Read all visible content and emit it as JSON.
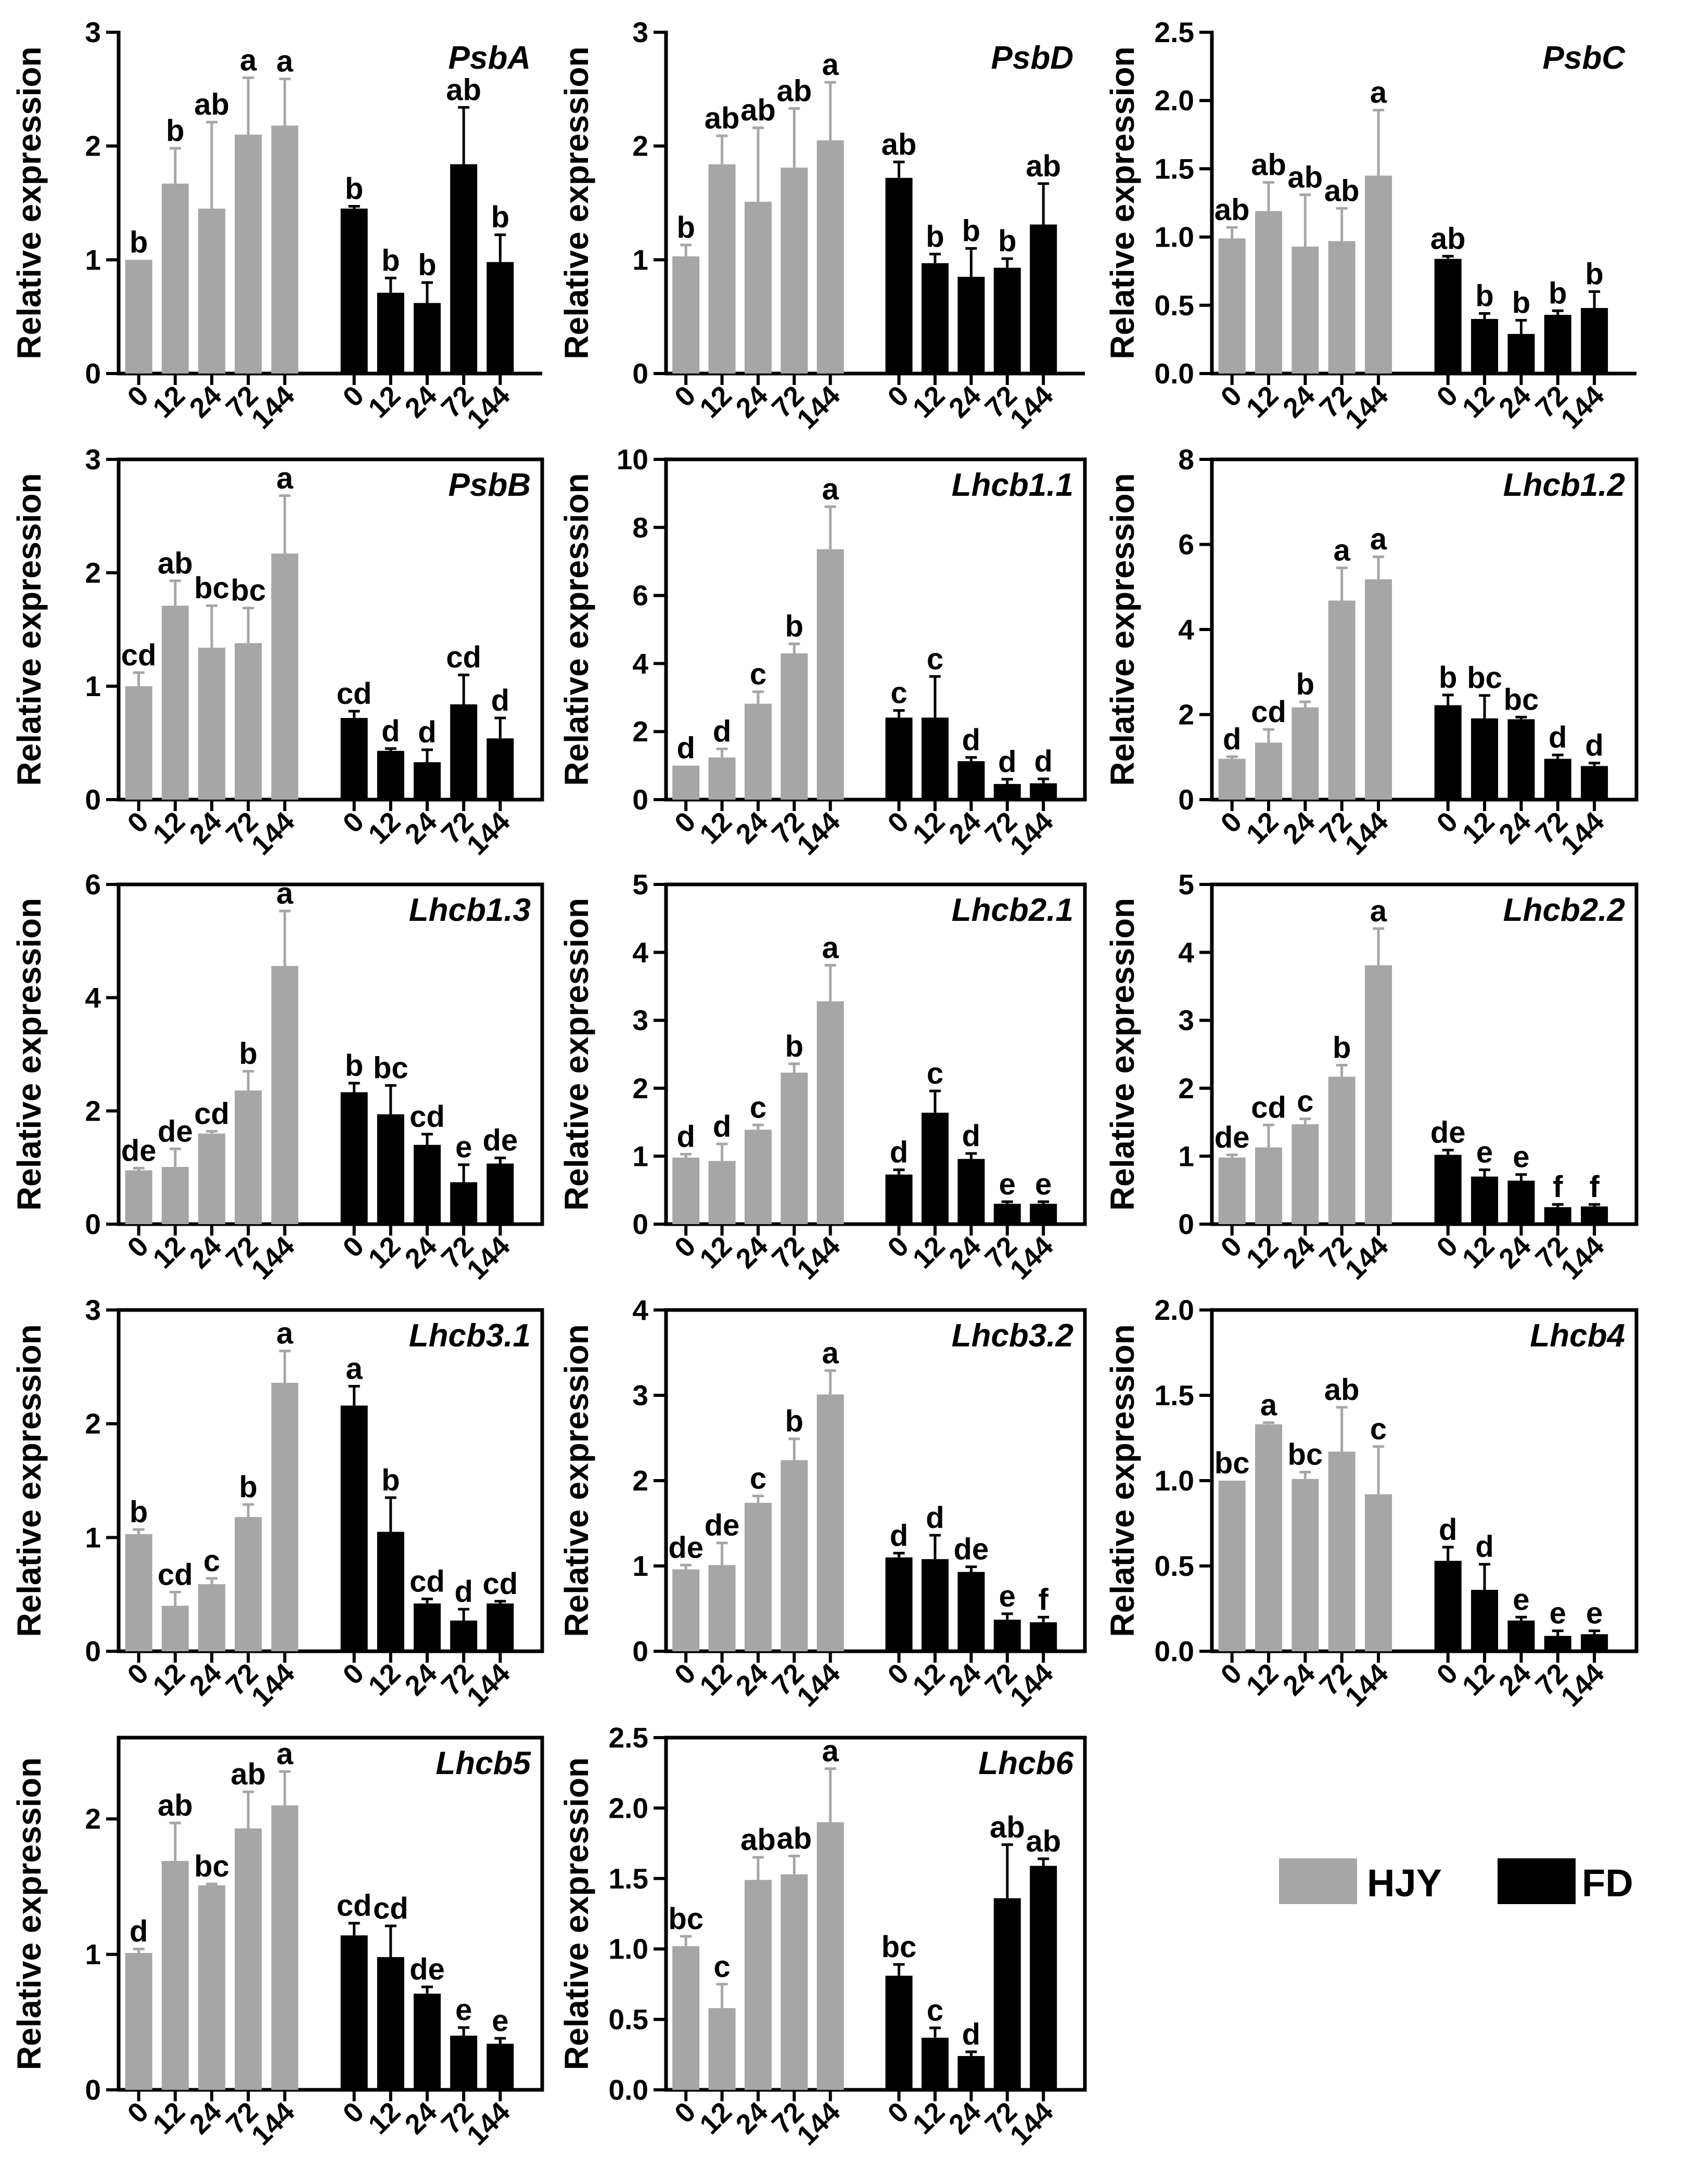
{
  "colors": {
    "hjy": "#A6A6A6",
    "fd": "#000000",
    "axis": "#000000"
  },
  "legend": {
    "position": "bottom-right",
    "items": [
      {
        "label": "HJY",
        "color": "#A6A6A6"
      },
      {
        "label": "FD",
        "color": "#000000"
      }
    ]
  },
  "chart_data": [
    {
      "type": "bar",
      "title": "PsbA",
      "ylabel": "Relative expression",
      "ylim": [
        0,
        3
      ],
      "yticks": [
        0,
        1,
        2,
        3
      ],
      "boxed": false,
      "categories": [
        "0",
        "12",
        "24",
        "72",
        "144"
      ],
      "series": [
        {
          "name": "HJY",
          "values": [
            1.0,
            1.67,
            1.45,
            2.1,
            2.18
          ],
          "errors": [
            0.0,
            0.31,
            0.76,
            0.5,
            0.41
          ],
          "letters": [
            "b",
            "b",
            "ab",
            "a",
            "a"
          ]
        },
        {
          "name": "FD",
          "values": [
            1.45,
            0.71,
            0.62,
            1.84,
            0.98
          ],
          "errors": [
            0.02,
            0.13,
            0.18,
            0.5,
            0.24
          ],
          "letters": [
            "b",
            "b",
            "b",
            "ab",
            "b"
          ]
        }
      ]
    },
    {
      "type": "bar",
      "title": "PsbD",
      "ylabel": "Relative expression",
      "ylim": [
        0,
        3
      ],
      "yticks": [
        0,
        1,
        2,
        3
      ],
      "boxed": false,
      "categories": [
        "0",
        "12",
        "24",
        "72",
        "144"
      ],
      "series": [
        {
          "name": "HJY",
          "values": [
            1.03,
            1.84,
            1.51,
            1.81,
            2.05
          ],
          "errors": [
            0.1,
            0.25,
            0.65,
            0.52,
            0.51
          ],
          "letters": [
            "b",
            "ab",
            "ab",
            "ab",
            "a"
          ]
        },
        {
          "name": "FD",
          "values": [
            1.72,
            0.97,
            0.85,
            0.93,
            1.31
          ],
          "errors": [
            0.14,
            0.08,
            0.25,
            0.08,
            0.36
          ],
          "letters": [
            "ab",
            "b",
            "b",
            "b",
            "ab"
          ]
        }
      ]
    },
    {
      "type": "bar",
      "title": "PsbC",
      "ylabel": "Relative expression",
      "ylim": [
        0,
        2.5
      ],
      "yticks": [
        "0.0",
        "0.5",
        "1.0",
        "1.5",
        "2.0",
        "2.5"
      ],
      "boxed": false,
      "categories": [
        "0",
        "12",
        "24",
        "72",
        "144"
      ],
      "series": [
        {
          "name": "HJY",
          "values": [
            0.99,
            1.19,
            0.93,
            0.97,
            1.45
          ],
          "errors": [
            0.08,
            0.21,
            0.38,
            0.24,
            0.48
          ],
          "letters": [
            "ab",
            "ab",
            "ab",
            "ab",
            "a"
          ]
        },
        {
          "name": "FD",
          "values": [
            0.84,
            0.4,
            0.29,
            0.43,
            0.48
          ],
          "errors": [
            0.02,
            0.04,
            0.1,
            0.03,
            0.12
          ],
          "letters": [
            "ab",
            "b",
            "b",
            "b",
            "b"
          ]
        }
      ]
    },
    {
      "type": "bar",
      "title": "PsbB",
      "ylabel": "Relative expression",
      "ylim": [
        0,
        3
      ],
      "yticks": [
        0,
        1,
        2,
        3
      ],
      "boxed": true,
      "categories": [
        "0",
        "12",
        "24",
        "72",
        "144"
      ],
      "series": [
        {
          "name": "HJY",
          "values": [
            1.0,
            1.71,
            1.34,
            1.38,
            2.17
          ],
          "errors": [
            0.12,
            0.22,
            0.37,
            0.31,
            0.51
          ],
          "letters": [
            "cd",
            "ab",
            "bc",
            "bc",
            "a"
          ]
        },
        {
          "name": "FD",
          "values": [
            0.72,
            0.43,
            0.33,
            0.84,
            0.54
          ],
          "errors": [
            0.06,
            0.02,
            0.11,
            0.26,
            0.18
          ],
          "letters": [
            "cd",
            "d",
            "d",
            "cd",
            "d"
          ]
        }
      ]
    },
    {
      "type": "bar",
      "title": "Lhcb1.1",
      "ylabel": "Relative expression",
      "ylim": [
        0,
        10
      ],
      "yticks": [
        0,
        2,
        4,
        6,
        8,
        10
      ],
      "boxed": true,
      "categories": [
        "0",
        "12",
        "24",
        "72",
        "144"
      ],
      "series": [
        {
          "name": "HJY",
          "values": [
            1.0,
            1.24,
            2.82,
            4.3,
            7.36
          ],
          "errors": [
            0.0,
            0.25,
            0.35,
            0.28,
            1.25
          ],
          "letters": [
            "d",
            "d",
            "c",
            "b",
            "a"
          ]
        },
        {
          "name": "FD",
          "values": [
            2.41,
            2.41,
            1.13,
            0.46,
            0.48
          ],
          "errors": [
            0.21,
            1.21,
            0.11,
            0.14,
            0.13
          ],
          "letters": [
            "c",
            "c",
            "d",
            "d",
            "d"
          ]
        }
      ]
    },
    {
      "type": "bar",
      "title": "Lhcb1.2",
      "ylabel": "Relative expression",
      "ylim": [
        0,
        8
      ],
      "yticks": [
        0,
        2,
        4,
        6,
        8
      ],
      "boxed": true,
      "categories": [
        "0",
        "12",
        "24",
        "72",
        "144"
      ],
      "series": [
        {
          "name": "HJY",
          "values": [
            0.96,
            1.34,
            2.17,
            4.68,
            5.18
          ],
          "errors": [
            0.05,
            0.31,
            0.13,
            0.77,
            0.53
          ],
          "letters": [
            "d",
            "cd",
            "b",
            "a",
            "a"
          ]
        },
        {
          "name": "FD",
          "values": [
            2.22,
            1.91,
            1.89,
            0.96,
            0.79
          ],
          "errors": [
            0.24,
            0.54,
            0.05,
            0.09,
            0.07
          ],
          "letters": [
            "b",
            "bc",
            "bc",
            "d",
            "d"
          ]
        }
      ]
    },
    {
      "type": "bar",
      "title": "Lhcb1.3",
      "ylabel": "Relative expression",
      "ylim": [
        0,
        6
      ],
      "yticks": [
        0,
        2,
        4,
        6
      ],
      "boxed": true,
      "categories": [
        "0",
        "12",
        "24",
        "72",
        "144"
      ],
      "series": [
        {
          "name": "HJY",
          "values": [
            0.95,
            1.01,
            1.6,
            2.36,
            4.56
          ],
          "errors": [
            0.04,
            0.32,
            0.04,
            0.34,
            0.97
          ],
          "letters": [
            "de",
            "de",
            "cd",
            "b",
            "a"
          ]
        },
        {
          "name": "FD",
          "values": [
            2.33,
            1.94,
            1.4,
            0.74,
            1.07
          ],
          "errors": [
            0.16,
            0.51,
            0.19,
            0.31,
            0.1
          ],
          "letters": [
            "b",
            "bc",
            "cd",
            "e",
            "de"
          ]
        }
      ]
    },
    {
      "type": "bar",
      "title": "Lhcb2.1",
      "ylabel": "Relative expression",
      "ylim": [
        0,
        5
      ],
      "yticks": [
        0,
        1,
        2,
        3,
        4,
        5
      ],
      "boxed": true,
      "categories": [
        "0",
        "12",
        "24",
        "72",
        "144"
      ],
      "series": [
        {
          "name": "HJY",
          "values": [
            0.98,
            0.93,
            1.39,
            2.23,
            3.28
          ],
          "errors": [
            0.05,
            0.25,
            0.07,
            0.13,
            0.53
          ],
          "letters": [
            "d",
            "d",
            "c",
            "b",
            "a"
          ]
        },
        {
          "name": "FD",
          "values": [
            0.73,
            1.64,
            0.96,
            0.3,
            0.3
          ],
          "errors": [
            0.07,
            0.32,
            0.08,
            0.03,
            0.03
          ],
          "letters": [
            "d",
            "c",
            "d",
            "e",
            "e"
          ]
        }
      ]
    },
    {
      "type": "bar",
      "title": "Lhcb2.2",
      "ylabel": "Relative expression",
      "ylim": [
        0,
        5
      ],
      "yticks": [
        0,
        1,
        2,
        3,
        4,
        5
      ],
      "boxed": true,
      "categories": [
        "0",
        "12",
        "24",
        "72",
        "144"
      ],
      "series": [
        {
          "name": "HJY",
          "values": [
            0.98,
            1.13,
            1.47,
            2.17,
            3.81
          ],
          "errors": [
            0.04,
            0.33,
            0.08,
            0.17,
            0.54
          ],
          "letters": [
            "de",
            "cd",
            "c",
            "b",
            "a"
          ]
        },
        {
          "name": "FD",
          "values": [
            1.02,
            0.7,
            0.64,
            0.25,
            0.26
          ],
          "errors": [
            0.07,
            0.1,
            0.09,
            0.04,
            0.03
          ],
          "letters": [
            "de",
            "e",
            "e",
            "f",
            "f"
          ]
        }
      ]
    },
    {
      "type": "bar",
      "title": "Lhcb3.1",
      "ylabel": "Relative expression",
      "ylim": [
        0,
        3
      ],
      "yticks": [
        0,
        1,
        2,
        3
      ],
      "boxed": true,
      "categories": [
        "0",
        "12",
        "24",
        "72",
        "144"
      ],
      "series": [
        {
          "name": "HJY",
          "values": [
            1.03,
            0.4,
            0.59,
            1.18,
            2.36
          ],
          "errors": [
            0.04,
            0.12,
            0.05,
            0.11,
            0.28
          ],
          "letters": [
            "b",
            "cd",
            "c",
            "b",
            "a"
          ]
        },
        {
          "name": "FD",
          "values": [
            2.16,
            1.05,
            0.42,
            0.27,
            0.42
          ],
          "errors": [
            0.17,
            0.3,
            0.04,
            0.1,
            0.02
          ],
          "letters": [
            "a",
            "b",
            "cd",
            "d",
            "cd"
          ]
        }
      ]
    },
    {
      "type": "bar",
      "title": "Lhcb3.2",
      "ylabel": "Relative expression",
      "ylim": [
        0,
        4
      ],
      "yticks": [
        0,
        1,
        2,
        3,
        4
      ],
      "boxed": true,
      "categories": [
        "0",
        "12",
        "24",
        "72",
        "144"
      ],
      "series": [
        {
          "name": "HJY",
          "values": [
            0.96,
            1.01,
            1.74,
            2.24,
            3.01
          ],
          "errors": [
            0.05,
            0.26,
            0.08,
            0.25,
            0.28
          ],
          "letters": [
            "de",
            "de",
            "c",
            "b",
            "a"
          ]
        },
        {
          "name": "FD",
          "values": [
            1.1,
            1.08,
            0.93,
            0.37,
            0.34
          ],
          "errors": [
            0.05,
            0.28,
            0.06,
            0.07,
            0.06
          ],
          "letters": [
            "d",
            "d",
            "de",
            "e",
            "f"
          ]
        }
      ]
    },
    {
      "type": "bar",
      "title": "Lhcb4",
      "ylabel": "Relative expression",
      "ylim": [
        0,
        2
      ],
      "yticks": [
        "0.0",
        "0.5",
        "1.0",
        "1.5",
        "2.0"
      ],
      "boxed": true,
      "categories": [
        "0",
        "12",
        "24",
        "72",
        "144"
      ],
      "series": [
        {
          "name": "HJY",
          "values": [
            1.0,
            1.33,
            1.01,
            1.17,
            0.92
          ],
          "errors": [
            0.0,
            0.01,
            0.04,
            0.26,
            0.28
          ],
          "letters": [
            "bc",
            "a",
            "bc",
            "ab",
            "c"
          ]
        },
        {
          "name": "FD",
          "values": [
            0.53,
            0.36,
            0.18,
            0.09,
            0.1
          ],
          "errors": [
            0.08,
            0.15,
            0.02,
            0.03,
            0.02
          ],
          "letters": [
            "d",
            "d",
            "e",
            "e",
            "e"
          ]
        }
      ]
    },
    {
      "type": "bar",
      "title": "Lhcb5",
      "ylabel": "Relative expression",
      "ylim": [
        0,
        2.6
      ],
      "yticks": [
        0,
        1,
        2
      ],
      "boxed": true,
      "categories": [
        "0",
        "12",
        "24",
        "72",
        "144"
      ],
      "series": [
        {
          "name": "HJY",
          "values": [
            1.01,
            1.69,
            1.51,
            1.93,
            2.1
          ],
          "errors": [
            0.03,
            0.28,
            0.01,
            0.27,
            0.25
          ],
          "letters": [
            "d",
            "ab",
            "bc",
            "ab",
            "a"
          ]
        },
        {
          "name": "FD",
          "values": [
            1.14,
            0.98,
            0.71,
            0.4,
            0.34
          ],
          "errors": [
            0.09,
            0.23,
            0.05,
            0.06,
            0.04
          ],
          "letters": [
            "cd",
            "cd",
            "de",
            "e",
            "e"
          ]
        }
      ]
    },
    {
      "type": "bar",
      "title": "Lhcb6",
      "ylabel": "Relative expression",
      "ylim": [
        0,
        2.5
      ],
      "yticks": [
        "0.0",
        "0.5",
        "1.0",
        "1.5",
        "2.0",
        "2.5"
      ],
      "boxed": true,
      "categories": [
        "0",
        "12",
        "24",
        "72",
        "144"
      ],
      "series": [
        {
          "name": "HJY",
          "values": [
            1.02,
            0.58,
            1.49,
            1.53,
            1.9
          ],
          "errors": [
            0.07,
            0.17,
            0.16,
            0.13,
            0.38
          ],
          "letters": [
            "bc",
            "c",
            "ab",
            "ab",
            "a"
          ]
        },
        {
          "name": "FD",
          "values": [
            0.81,
            0.37,
            0.24,
            1.36,
            1.59
          ],
          "errors": [
            0.08,
            0.07,
            0.03,
            0.38,
            0.05
          ],
          "letters": [
            "bc",
            "c",
            "d",
            "ab",
            "ab"
          ]
        }
      ]
    }
  ]
}
